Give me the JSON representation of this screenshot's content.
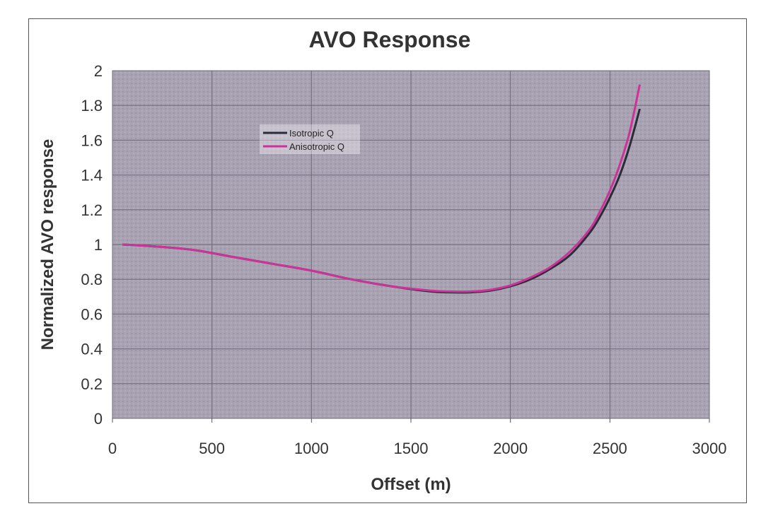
{
  "chart_data": {
    "type": "line",
    "title": "AVO Response",
    "xlabel": "Offset (m)",
    "ylabel": "Normalized AVO response",
    "xlim": [
      0,
      3000
    ],
    "ylim": [
      0,
      2
    ],
    "xticks": [
      "0",
      "500",
      "1000",
      "1500",
      "2000",
      "2500",
      "3000"
    ],
    "yticks": [
      "0",
      "0.2",
      "0.4",
      "0.6",
      "0.8",
      "1",
      "1.2",
      "1.4",
      "1.6",
      "1.8",
      "2"
    ],
    "grid": true,
    "legend_position": "upper-left inside plot",
    "series": [
      {
        "name": "Isotropic Q",
        "color": "#2b2b3a",
        "x": [
          50,
          200,
          400,
          600,
          800,
          1000,
          1200,
          1400,
          1600,
          1700,
          1800,
          1900,
          2000,
          2100,
          2200,
          2300,
          2400,
          2450,
          2500,
          2550,
          2600,
          2650
        ],
        "y": [
          1.0,
          0.99,
          0.97,
          0.93,
          0.89,
          0.85,
          0.8,
          0.76,
          0.73,
          0.725,
          0.725,
          0.735,
          0.76,
          0.8,
          0.86,
          0.94,
          1.07,
          1.16,
          1.27,
          1.4,
          1.57,
          1.78
        ]
      },
      {
        "name": "Anisotropic Q",
        "color": "#cc3399",
        "x": [
          50,
          200,
          400,
          600,
          800,
          1000,
          1200,
          1400,
          1600,
          1700,
          1800,
          1900,
          2000,
          2100,
          2200,
          2300,
          2400,
          2450,
          2500,
          2550,
          2600,
          2650
        ],
        "y": [
          1.0,
          0.99,
          0.97,
          0.93,
          0.89,
          0.85,
          0.8,
          0.76,
          0.735,
          0.73,
          0.73,
          0.74,
          0.765,
          0.81,
          0.87,
          0.96,
          1.09,
          1.19,
          1.31,
          1.46,
          1.65,
          1.92
        ]
      }
    ]
  }
}
